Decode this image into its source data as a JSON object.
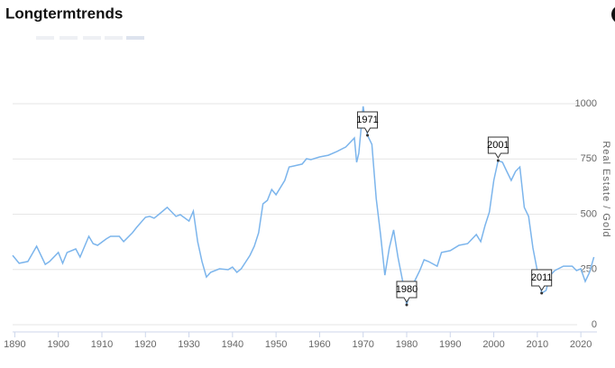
{
  "chart_data": {
    "type": "line",
    "title": "Longtermtrends",
    "y_label": "Real Estate / Gold",
    "x": [
      1889.5,
      1891,
      1893,
      1895,
      1897,
      1898,
      1900,
      1901,
      1902,
      1904,
      1905,
      1907,
      1908,
      1909,
      1911,
      1912,
      1914,
      1915,
      1917,
      1918,
      1920,
      1921,
      1922,
      1923,
      1925,
      1927,
      1928,
      1930,
      1931,
      1932,
      1933,
      1934,
      1935,
      1937,
      1939,
      1940,
      1941,
      1942,
      1944,
      1945,
      1946,
      1947,
      1948,
      1949,
      1950,
      1952,
      1953,
      1954,
      1956,
      1957,
      1958,
      1960,
      1962,
      1964,
      1966,
      1968,
      1968.5,
      1969,
      1970,
      1971,
      1972,
      1973,
      1974,
      1975,
      1976,
      1977,
      1978,
      1979,
      1980,
      1981,
      1982,
      1983,
      1984,
      1985,
      1987,
      1988,
      1990,
      1992,
      1994,
      1996,
      1997,
      1998,
      1999,
      2000,
      2001,
      2002,
      2003,
      2004,
      2005,
      2006,
      2007,
      2008,
      2009,
      2010,
      2011,
      2012,
      2013,
      2014,
      2016,
      2018,
      2019,
      2020,
      2021,
      2022,
      2023
    ],
    "series": [
      {
        "name": "Real Estate / Gold",
        "color": "#7cb5ec",
        "values": [
          314,
          278,
          286,
          355,
          273,
          286,
          327,
          278,
          327,
          343,
          306,
          400,
          367,
          359,
          388,
          400,
          400,
          376,
          416,
          441,
          486,
          490,
          482,
          498,
          531,
          490,
          498,
          469,
          514,
          376,
          286,
          216,
          237,
          253,
          249,
          261,
          237,
          253,
          314,
          355,
          416,
          547,
          563,
          612,
          588,
          653,
          714,
          718,
          727,
          751,
          747,
          759,
          767,
          784,
          804,
          845,
          735,
          776,
          988,
          857,
          816,
          571,
          408,
          224,
          347,
          429,
          306,
          204,
          90,
          163,
          204,
          245,
          294,
          286,
          265,
          327,
          335,
          359,
          367,
          408,
          376,
          449,
          510,
          653,
          743,
          735,
          694,
          653,
          694,
          714,
          531,
          490,
          347,
          245,
          143,
          155,
          224,
          245,
          265,
          265,
          245,
          253,
          196,
          237,
          306
        ]
      }
    ],
    "annotations": [
      {
        "label": "1971",
        "x": 1971,
        "y": 857
      },
      {
        "label": "1980",
        "x": 1980,
        "y": 90
      },
      {
        "label": "2001",
        "x": 2001,
        "y": 743
      },
      {
        "label": "2011",
        "x": 2011,
        "y": 143
      }
    ],
    "xlim": [
      1889.5,
      2023.7
    ],
    "xticks": [
      1890,
      1900,
      1910,
      1920,
      1930,
      1940,
      1950,
      1960,
      1970,
      1980,
      1990,
      2000,
      2010,
      2020
    ],
    "ylim": [
      0,
      1000
    ],
    "yticks": [
      0,
      250,
      500,
      750,
      1000
    ],
    "grid": true
  }
}
